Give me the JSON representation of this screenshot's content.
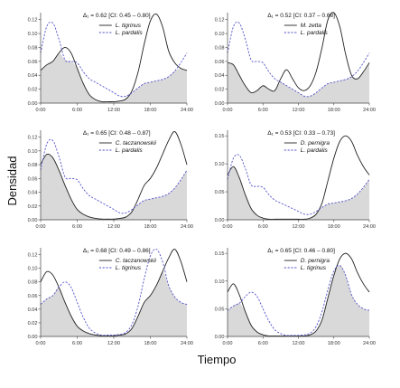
{
  "figure": {
    "ylabel": "Densidad",
    "xlabel": "Tiempo"
  },
  "chart_data": [
    {
      "type": "area",
      "overlap_label": "Δ₁ = 0.62 [CI: 0.45 – 0.80]",
      "x_ticks": [
        "0:00",
        "6:00",
        "12:00",
        "18:00",
        "24:00"
      ],
      "x_ticks_hours": [
        0,
        6,
        12,
        18,
        24
      ],
      "xlim": [
        0,
        24
      ],
      "ylim": [
        0,
        0.13
      ],
      "y_ticks": [
        0.0,
        0.02,
        0.04,
        0.06,
        0.08,
        0.1,
        0.12
      ],
      "y_tick_labels": [
        "0.00",
        "0.02",
        "0.04",
        "0.06",
        "0.08",
        "0.10",
        "0.12"
      ],
      "legend_placement": "top-right",
      "series": [
        {
          "name": "L. tigrinus",
          "style": "solid",
          "color": "#222222",
          "x": [
            0,
            1,
            2,
            3,
            4,
            5,
            6,
            7,
            8,
            9,
            10,
            11,
            12,
            13,
            14,
            15,
            16,
            17,
            18,
            19,
            20,
            21,
            22,
            23,
            24
          ],
          "values": [
            0.047,
            0.055,
            0.06,
            0.072,
            0.08,
            0.072,
            0.05,
            0.028,
            0.012,
            0.005,
            0.002,
            0.002,
            0.002,
            0.003,
            0.006,
            0.018,
            0.045,
            0.085,
            0.118,
            0.128,
            0.11,
            0.075,
            0.058,
            0.05,
            0.047
          ]
        },
        {
          "name": "L. pardalis",
          "style": "dashed",
          "color": "#5555cc",
          "x": [
            0,
            1,
            2,
            3,
            4,
            5,
            6,
            7,
            8,
            9,
            10,
            11,
            12,
            13,
            14,
            15,
            16,
            17,
            18,
            19,
            20,
            21,
            22,
            23,
            24
          ],
          "values": [
            0.072,
            0.11,
            0.115,
            0.092,
            0.062,
            0.06,
            0.058,
            0.045,
            0.035,
            0.03,
            0.025,
            0.02,
            0.015,
            0.01,
            0.01,
            0.015,
            0.022,
            0.028,
            0.03,
            0.032,
            0.034,
            0.038,
            0.046,
            0.058,
            0.072
          ]
        }
      ]
    },
    {
      "type": "area",
      "overlap_label": "Δ₁ = 0.52 [CI: 0.37 – 0.68]",
      "x_ticks": [
        "0:00",
        "6:00",
        "12:00",
        "18:00",
        "24:00"
      ],
      "x_ticks_hours": [
        0,
        6,
        12,
        18,
        24
      ],
      "xlim": [
        0,
        24
      ],
      "ylim": [
        0,
        0.13
      ],
      "y_ticks": [
        0.0,
        0.02,
        0.04,
        0.06,
        0.08,
        0.1,
        0.12
      ],
      "y_tick_labels": [
        "0.00",
        "0.02",
        "0.04",
        "0.06",
        "0.08",
        "0.10",
        "0.12"
      ],
      "legend_placement": "top-right",
      "series": [
        {
          "name": "M. zetta",
          "style": "solid",
          "color": "#222222",
          "x": [
            0,
            1,
            2,
            3,
            4,
            5,
            6,
            7,
            8,
            9,
            10,
            11,
            12,
            13,
            14,
            15,
            16,
            17,
            18,
            19,
            20,
            21,
            22,
            23,
            24
          ],
          "values": [
            0.058,
            0.055,
            0.04,
            0.025,
            0.015,
            0.018,
            0.025,
            0.02,
            0.018,
            0.035,
            0.048,
            0.035,
            0.022,
            0.018,
            0.025,
            0.045,
            0.08,
            0.12,
            0.13,
            0.11,
            0.07,
            0.04,
            0.035,
            0.045,
            0.058
          ]
        },
        {
          "name": "L. pardalis",
          "style": "dashed",
          "color": "#5555cc",
          "x": [
            0,
            1,
            2,
            3,
            4,
            5,
            6,
            7,
            8,
            9,
            10,
            11,
            12,
            13,
            14,
            15,
            16,
            17,
            18,
            19,
            20,
            21,
            22,
            23,
            24
          ],
          "values": [
            0.072,
            0.11,
            0.115,
            0.092,
            0.062,
            0.06,
            0.058,
            0.045,
            0.035,
            0.03,
            0.025,
            0.02,
            0.015,
            0.01,
            0.01,
            0.015,
            0.022,
            0.028,
            0.03,
            0.032,
            0.034,
            0.038,
            0.046,
            0.058,
            0.072
          ]
        }
      ]
    },
    {
      "type": "area",
      "overlap_label": "Δ₁ = 0.65 [CI: 0.48 – 0.87]",
      "x_ticks": [
        "0:00",
        "6:00",
        "12:00",
        "18:00",
        "24:00"
      ],
      "x_ticks_hours": [
        0,
        6,
        12,
        18,
        24
      ],
      "xlim": [
        0,
        24
      ],
      "ylim": [
        0,
        0.13
      ],
      "y_ticks": [
        0.0,
        0.02,
        0.04,
        0.06,
        0.08,
        0.1,
        0.12
      ],
      "y_tick_labels": [
        "0.00",
        "0.02",
        "0.04",
        "0.06",
        "0.08",
        "0.10",
        "0.12"
      ],
      "legend_placement": "top-right",
      "series": [
        {
          "name": "C. taczanowskii",
          "style": "solid",
          "color": "#222222",
          "x": [
            0,
            1,
            2,
            3,
            4,
            5,
            6,
            7,
            8,
            9,
            10,
            11,
            12,
            13,
            14,
            15,
            16,
            17,
            18,
            19,
            20,
            21,
            22,
            23,
            24
          ],
          "values": [
            0.08,
            0.095,
            0.09,
            0.072,
            0.05,
            0.03,
            0.015,
            0.008,
            0.004,
            0.002,
            0.001,
            0.001,
            0.001,
            0.002,
            0.004,
            0.012,
            0.03,
            0.05,
            0.06,
            0.075,
            0.095,
            0.115,
            0.128,
            0.11,
            0.08
          ]
        },
        {
          "name": "L. pardalis",
          "style": "dashed",
          "color": "#5555cc",
          "x": [
            0,
            1,
            2,
            3,
            4,
            5,
            6,
            7,
            8,
            9,
            10,
            11,
            12,
            13,
            14,
            15,
            16,
            17,
            18,
            19,
            20,
            21,
            22,
            23,
            24
          ],
          "values": [
            0.072,
            0.11,
            0.115,
            0.092,
            0.062,
            0.06,
            0.058,
            0.045,
            0.035,
            0.03,
            0.025,
            0.02,
            0.015,
            0.01,
            0.01,
            0.015,
            0.022,
            0.028,
            0.03,
            0.032,
            0.034,
            0.038,
            0.046,
            0.058,
            0.072
          ]
        }
      ]
    },
    {
      "type": "area",
      "overlap_label": "Δ₁ = 0.53 [CI: 0.33 – 0.73]",
      "x_ticks": [
        "0:00",
        "6:00",
        "12:00",
        "18:00",
        "24:00"
      ],
      "x_ticks_hours": [
        0,
        6,
        12,
        18,
        24
      ],
      "xlim": [
        0,
        24
      ],
      "ylim": [
        0,
        0.16
      ],
      "y_ticks": [
        0.0,
        0.05,
        0.1,
        0.15
      ],
      "y_tick_labels": [
        "0.00",
        "0.05",
        "0.10",
        "0.15"
      ],
      "legend_placement": "top-right",
      "series": [
        {
          "name": "D. pernigra",
          "style": "solid",
          "color": "#222222",
          "x": [
            0,
            1,
            2,
            3,
            4,
            5,
            6,
            7,
            8,
            9,
            10,
            11,
            12,
            13,
            14,
            15,
            16,
            17,
            18,
            19,
            20,
            21,
            22,
            23,
            24
          ],
          "values": [
            0.08,
            0.095,
            0.075,
            0.045,
            0.02,
            0.008,
            0.003,
            0.001,
            0.001,
            0.001,
            0.001,
            0.001,
            0.001,
            0.001,
            0.003,
            0.01,
            0.03,
            0.07,
            0.11,
            0.14,
            0.15,
            0.14,
            0.115,
            0.095,
            0.08
          ]
        },
        {
          "name": "L. pardalis",
          "style": "dashed",
          "color": "#5555cc",
          "x": [
            0,
            1,
            2,
            3,
            4,
            5,
            6,
            7,
            8,
            9,
            10,
            11,
            12,
            13,
            14,
            15,
            16,
            17,
            18,
            19,
            20,
            21,
            22,
            23,
            24
          ],
          "values": [
            0.072,
            0.11,
            0.115,
            0.092,
            0.062,
            0.06,
            0.058,
            0.045,
            0.035,
            0.03,
            0.025,
            0.02,
            0.015,
            0.01,
            0.01,
            0.015,
            0.022,
            0.028,
            0.03,
            0.032,
            0.034,
            0.038,
            0.046,
            0.058,
            0.072
          ]
        }
      ]
    },
    {
      "type": "area",
      "overlap_label": "Δ₁ = 0.68 [CI: 0.49 – 0.86]",
      "x_ticks": [
        "0:00",
        "6:00",
        "12:00",
        "18:00",
        "24:00"
      ],
      "x_ticks_hours": [
        0,
        6,
        12,
        18,
        24
      ],
      "xlim": [
        0,
        24
      ],
      "ylim": [
        0,
        0.13
      ],
      "y_ticks": [
        0.0,
        0.02,
        0.04,
        0.06,
        0.08,
        0.1,
        0.12
      ],
      "y_tick_labels": [
        "0.00",
        "0.02",
        "0.04",
        "0.06",
        "0.08",
        "0.10",
        "0.12"
      ],
      "legend_placement": "top-right",
      "series": [
        {
          "name": "C. taczanowskii",
          "style": "solid",
          "color": "#222222",
          "x": [
            0,
            1,
            2,
            3,
            4,
            5,
            6,
            7,
            8,
            9,
            10,
            11,
            12,
            13,
            14,
            15,
            16,
            17,
            18,
            19,
            20,
            21,
            22,
            23,
            24
          ],
          "values": [
            0.08,
            0.095,
            0.09,
            0.072,
            0.05,
            0.03,
            0.015,
            0.008,
            0.004,
            0.002,
            0.001,
            0.001,
            0.001,
            0.002,
            0.004,
            0.012,
            0.03,
            0.05,
            0.06,
            0.075,
            0.095,
            0.115,
            0.128,
            0.11,
            0.08
          ]
        },
        {
          "name": "L. tigrinus",
          "style": "dashed",
          "color": "#5555cc",
          "x": [
            0,
            1,
            2,
            3,
            4,
            5,
            6,
            7,
            8,
            9,
            10,
            11,
            12,
            13,
            14,
            15,
            16,
            17,
            18,
            19,
            20,
            21,
            22,
            23,
            24
          ],
          "values": [
            0.047,
            0.055,
            0.06,
            0.072,
            0.08,
            0.072,
            0.05,
            0.028,
            0.012,
            0.005,
            0.002,
            0.002,
            0.002,
            0.003,
            0.006,
            0.018,
            0.045,
            0.085,
            0.118,
            0.128,
            0.11,
            0.075,
            0.058,
            0.05,
            0.047
          ]
        }
      ]
    },
    {
      "type": "area",
      "overlap_label": "Δ₁ = 0.65 [CI: 0.46 – 0.80]",
      "x_ticks": [
        "0:00",
        "6:00",
        "12:00",
        "18:00",
        "24:00"
      ],
      "x_ticks_hours": [
        0,
        6,
        12,
        18,
        24
      ],
      "xlim": [
        0,
        24
      ],
      "ylim": [
        0,
        0.16
      ],
      "y_ticks": [
        0.0,
        0.05,
        0.1,
        0.15
      ],
      "y_tick_labels": [
        "0.00",
        "0.05",
        "0.10",
        "0.15"
      ],
      "legend_placement": "top-right",
      "series": [
        {
          "name": "D. pernigra",
          "style": "solid",
          "color": "#222222",
          "x": [
            0,
            1,
            2,
            3,
            4,
            5,
            6,
            7,
            8,
            9,
            10,
            11,
            12,
            13,
            14,
            15,
            16,
            17,
            18,
            19,
            20,
            21,
            22,
            23,
            24
          ],
          "values": [
            0.08,
            0.095,
            0.075,
            0.045,
            0.02,
            0.008,
            0.003,
            0.001,
            0.001,
            0.001,
            0.001,
            0.001,
            0.001,
            0.001,
            0.003,
            0.01,
            0.03,
            0.07,
            0.11,
            0.14,
            0.15,
            0.14,
            0.115,
            0.095,
            0.08
          ]
        },
        {
          "name": "L. tigrinus",
          "style": "dashed",
          "color": "#5555cc",
          "x": [
            0,
            1,
            2,
            3,
            4,
            5,
            6,
            7,
            8,
            9,
            10,
            11,
            12,
            13,
            14,
            15,
            16,
            17,
            18,
            19,
            20,
            21,
            22,
            23,
            24
          ],
          "values": [
            0.047,
            0.055,
            0.06,
            0.072,
            0.08,
            0.072,
            0.05,
            0.028,
            0.012,
            0.005,
            0.002,
            0.002,
            0.002,
            0.003,
            0.006,
            0.018,
            0.045,
            0.085,
            0.118,
            0.128,
            0.11,
            0.075,
            0.058,
            0.05,
            0.047
          ]
        }
      ]
    }
  ]
}
